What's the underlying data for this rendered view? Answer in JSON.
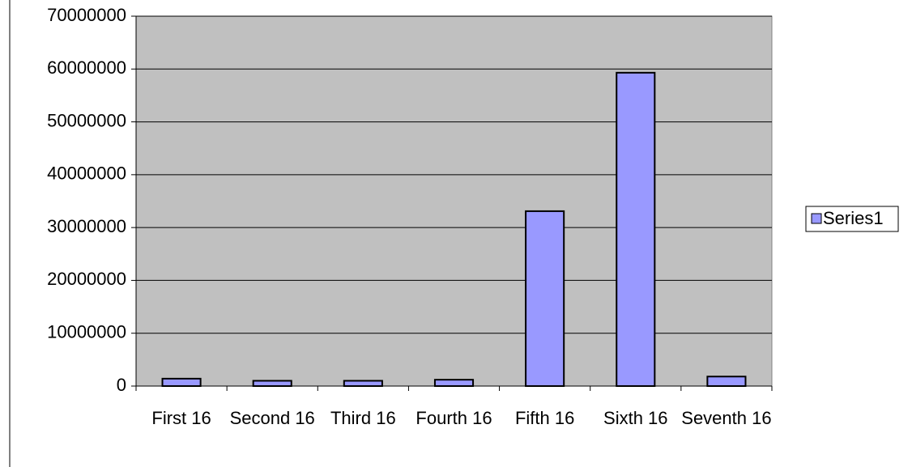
{
  "chart_data": {
    "type": "bar",
    "categories": [
      "First 16",
      "Second 16",
      "Third 16",
      "Fourth 16",
      "Fifth 16",
      "Sixth 16",
      "Seventh 16"
    ],
    "series": [
      {
        "name": "Series1",
        "color": "#9999ff",
        "values": [
          1400000,
          1000000,
          1000000,
          1200000,
          33100000,
          59300000,
          1800000
        ]
      }
    ],
    "ylim": [
      0,
      70000000
    ],
    "yticks": [
      0,
      10000000,
      20000000,
      30000000,
      40000000,
      50000000,
      60000000,
      70000000
    ],
    "grid": true,
    "legend": "right"
  }
}
